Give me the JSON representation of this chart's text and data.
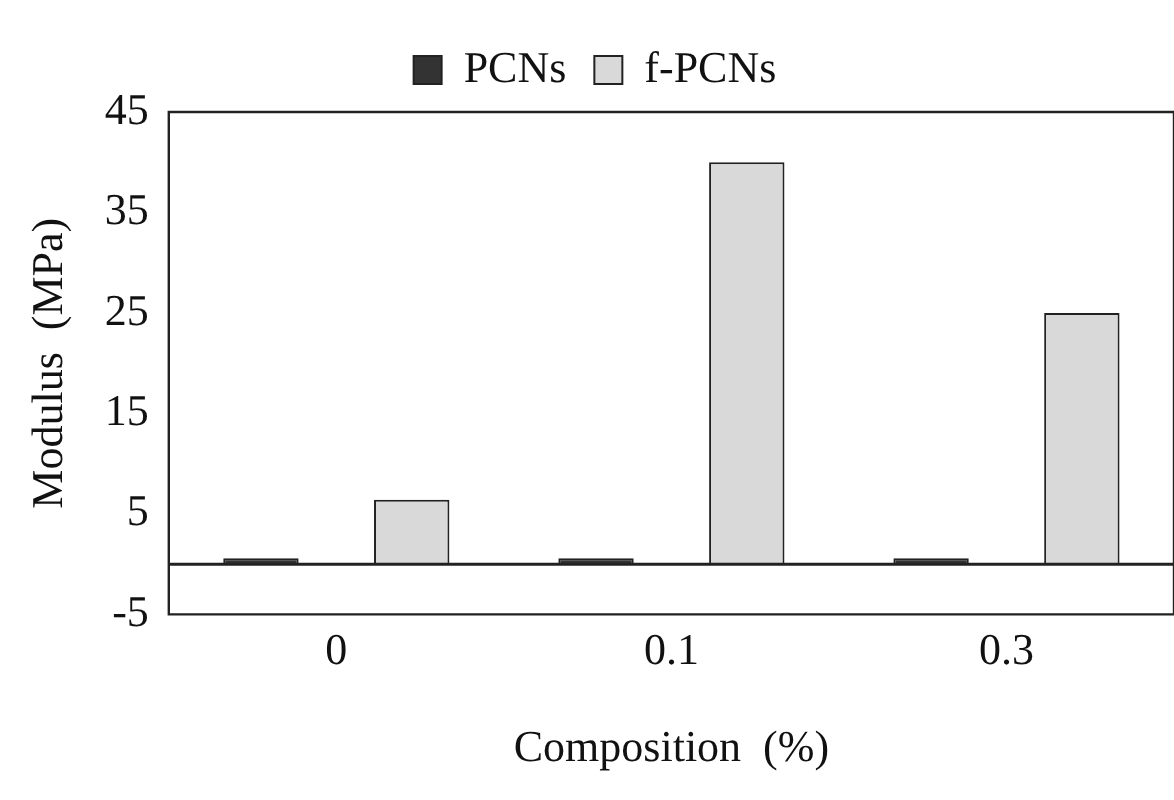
{
  "chart_data": {
    "type": "bar",
    "xlabel": "Composition  (%)",
    "ylabel": "Modulus  (MPa)",
    "categories": [
      "0",
      "0.1",
      "0.3"
    ],
    "series": [
      {
        "name": "PCNs",
        "color": "#333333",
        "values": [
          0.6,
          0.6,
          0.6
        ]
      },
      {
        "name": "f-PCNs",
        "color": "#d9d9d9",
        "values": [
          6.4,
          40,
          25
        ]
      }
    ],
    "ylim": [
      -5,
      45
    ],
    "yticks": [
      -5,
      5,
      15,
      25,
      35,
      45
    ],
    "grid": false,
    "legend": "top"
  }
}
